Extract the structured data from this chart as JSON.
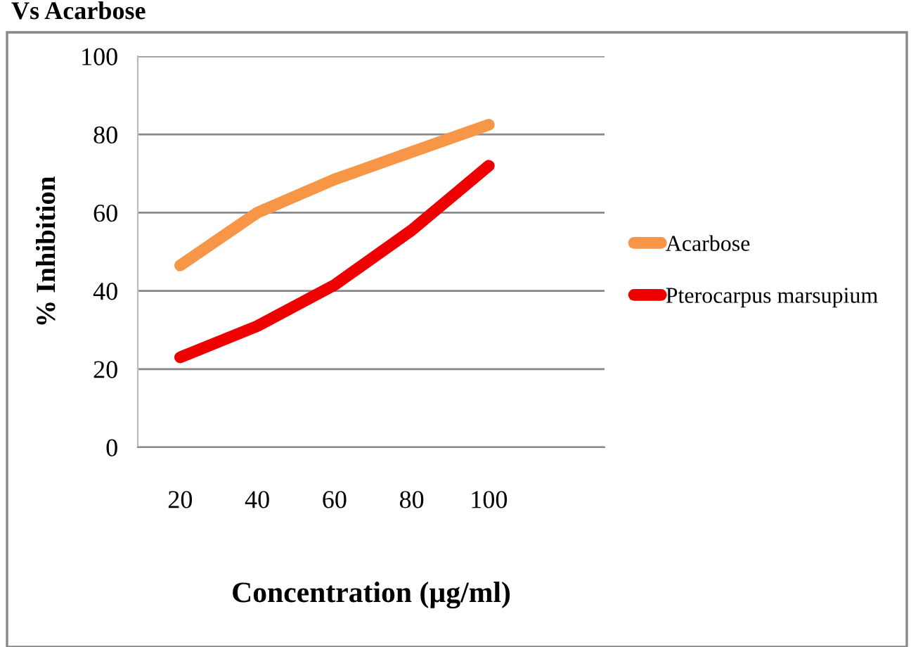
{
  "chart_data": {
    "type": "line",
    "title": "Vs Acarbose",
    "xlabel": "Concentration (µg/ml)",
    "ylabel": "% Inhibition",
    "categories": [
      "20",
      "40",
      "60",
      "80",
      "100"
    ],
    "series": [
      {
        "name": "Acarbose",
        "color": "#f79646",
        "values": [
          46.5,
          60,
          68.5,
          75.5,
          82.5
        ]
      },
      {
        "name": "Pterocarpus marsupium",
        "color": "#ee0000",
        "values": [
          23,
          31,
          41.5,
          55.5,
          72
        ]
      }
    ],
    "ylim": [
      0,
      100
    ],
    "yticks": [
      0,
      20,
      40,
      60,
      80,
      100
    ],
    "grid": "y",
    "legend": "right",
    "marker": "none",
    "line_style": "solid"
  }
}
